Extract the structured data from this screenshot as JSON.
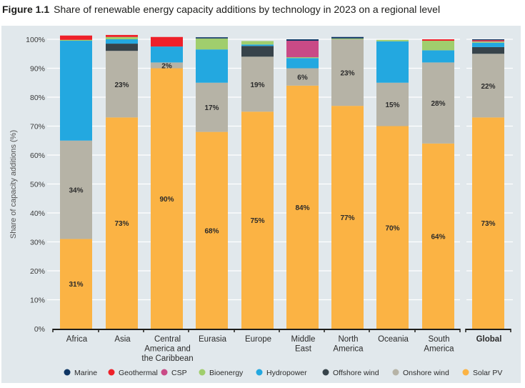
{
  "figure": {
    "number": "Figure 1.1",
    "caption": "Share of renewable energy capacity additions by technology in 2023 on a regional level"
  },
  "colors": {
    "panel_background": "#e1e8ec",
    "gridline": "#ffffff",
    "axis": "#1d1d1b"
  },
  "chart_data": {
    "type": "bar",
    "stacked": true,
    "title": "Share of renewable energy capacity additions by technology in 2023 on a regional level",
    "xlabel": "",
    "ylabel": "Share of capacity additions (%)",
    "ylim": [
      0,
      100
    ],
    "yticks": [
      "0%",
      "10%",
      "20%",
      "30%",
      "40%",
      "50%",
      "60%",
      "70%",
      "80%",
      "90%",
      "100%"
    ],
    "grid": true,
    "legend_position": "bottom",
    "categories": [
      [
        "Africa"
      ],
      [
        "Asia"
      ],
      [
        "Central",
        "America and",
        "the Caribbean"
      ],
      [
        "Eurasia"
      ],
      [
        "Europe"
      ],
      [
        "Middle",
        "East"
      ],
      [
        "North",
        "America"
      ],
      [
        "Oceania"
      ],
      [
        "South",
        "America"
      ],
      [
        "Global"
      ]
    ],
    "bold_categories": [
      "Global"
    ],
    "series": [
      {
        "name": "Solar PV",
        "color": "#fbb344",
        "values": [
          31,
          73,
          90,
          68,
          75,
          84,
          77,
          70,
          64,
          73
        ]
      },
      {
        "name": "Onshore wind",
        "color": "#b6b3a6",
        "values": [
          34,
          23,
          2,
          17,
          19,
          6,
          23,
          15,
          28,
          22
        ]
      },
      {
        "name": "Offshore wind",
        "color": "#37434a",
        "values": [
          0,
          2.5,
          0,
          0,
          3.7,
          0,
          0,
          0,
          0,
          2.3
        ]
      },
      {
        "name": "Hydropower",
        "color": "#23a8e0",
        "values": [
          34.5,
          1.5,
          5.5,
          11.5,
          0.5,
          3.5,
          0,
          14.3,
          4.2,
          1.5
        ]
      },
      {
        "name": "Bioenergy",
        "color": "#a0ce6d",
        "values": [
          0.3,
          0.8,
          0,
          3.8,
          1.2,
          0.3,
          0.3,
          0.5,
          3.3,
          0.4
        ]
      },
      {
        "name": "CSP",
        "color": "#c94a86",
        "values": [
          0,
          0,
          0,
          0,
          0,
          5.7,
          0,
          0,
          0,
          0.2
        ]
      },
      {
        "name": "Geothermal",
        "color": "#ee2029",
        "values": [
          1.5,
          0.7,
          3.3,
          0,
          0,
          0,
          0,
          0,
          0.5,
          0.3
        ]
      },
      {
        "name": "Marine",
        "color": "#0e3564",
        "values": [
          0,
          0,
          0,
          0.4,
          0,
          0.5,
          0.5,
          0,
          0,
          0.3
        ]
      }
    ],
    "data_labels": [
      {
        "category": 0,
        "series": "Solar PV",
        "text": "31%"
      },
      {
        "category": 0,
        "series": "Onshore wind",
        "text": "34%"
      },
      {
        "category": 1,
        "series": "Solar PV",
        "text": "73%"
      },
      {
        "category": 1,
        "series": "Onshore wind",
        "text": "23%"
      },
      {
        "category": 2,
        "series": "Solar PV",
        "text": "90%"
      },
      {
        "category": 2,
        "series": "Onshore wind",
        "text": "2%"
      },
      {
        "category": 3,
        "series": "Solar PV",
        "text": "68%"
      },
      {
        "category": 3,
        "series": "Onshore wind",
        "text": "17%"
      },
      {
        "category": 4,
        "series": "Solar PV",
        "text": "75%"
      },
      {
        "category": 4,
        "series": "Onshore wind",
        "text": "19%"
      },
      {
        "category": 5,
        "series": "Solar PV",
        "text": "84%"
      },
      {
        "category": 5,
        "series": "Onshore wind",
        "text": "6%"
      },
      {
        "category": 6,
        "series": "Solar PV",
        "text": "77%"
      },
      {
        "category": 6,
        "series": "Onshore wind",
        "text": "23%"
      },
      {
        "category": 7,
        "series": "Solar PV",
        "text": "70%"
      },
      {
        "category": 7,
        "series": "Onshore wind",
        "text": "15%"
      },
      {
        "category": 8,
        "series": "Solar PV",
        "text": "64%"
      },
      {
        "category": 8,
        "series": "Onshore wind",
        "text": "28%"
      },
      {
        "category": 9,
        "series": "Solar PV",
        "text": "73%"
      },
      {
        "category": 9,
        "series": "Onshore wind",
        "text": "22%"
      }
    ],
    "legend": [
      {
        "name": "Marine",
        "color": "#0e3564"
      },
      {
        "name": "Geothermal",
        "color": "#ee2029"
      },
      {
        "name": "CSP",
        "color": "#c94a86"
      },
      {
        "name": "Bioenergy",
        "color": "#a0ce6d"
      },
      {
        "name": "Hydropower",
        "color": "#23a8e0"
      },
      {
        "name": "Offshore wind",
        "color": "#37434a"
      },
      {
        "name": "Onshore wind",
        "color": "#b6b3a6"
      },
      {
        "name": "Solar PV",
        "color": "#fbb344"
      }
    ]
  }
}
